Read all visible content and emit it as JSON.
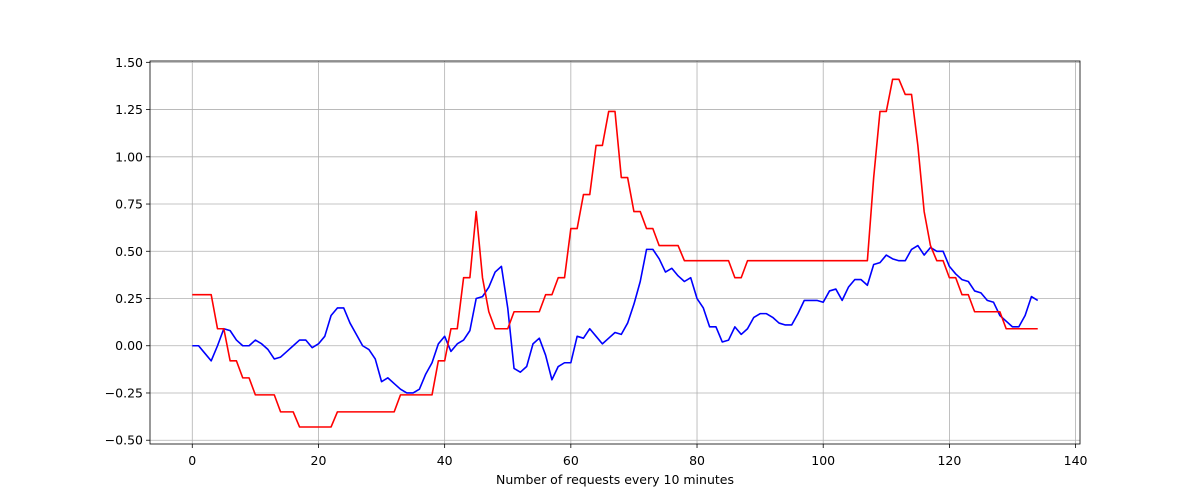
{
  "chart_data": {
    "type": "line",
    "xlabel": "Number of requests every 10 minutes",
    "x": [
      0,
      1,
      2,
      3,
      4,
      5,
      6,
      7,
      8,
      9,
      10,
      11,
      12,
      13,
      14,
      15,
      16,
      17,
      18,
      19,
      20,
      21,
      22,
      23,
      24,
      25,
      26,
      27,
      28,
      29,
      30,
      31,
      32,
      33,
      34,
      35,
      36,
      37,
      38,
      39,
      40,
      41,
      42,
      43,
      44,
      45,
      46,
      47,
      48,
      49,
      50,
      51,
      52,
      53,
      54,
      55,
      56,
      57,
      58,
      59,
      60,
      61,
      62,
      63,
      64,
      65,
      66,
      67,
      68,
      69,
      70,
      71,
      72,
      73,
      74,
      75,
      76,
      77,
      78,
      79,
      80,
      81,
      82,
      83,
      84,
      85,
      86,
      87,
      88,
      89,
      90,
      91,
      92,
      93,
      94,
      95,
      96,
      97,
      98,
      99,
      100,
      101,
      102,
      103,
      104,
      105,
      106,
      107,
      108,
      109,
      110,
      111,
      112,
      113,
      114,
      115,
      116,
      117,
      118,
      119,
      120,
      121,
      122,
      123,
      124,
      125,
      126,
      127,
      128,
      129,
      130,
      131,
      132,
      133,
      134
    ],
    "series": [
      {
        "color": "#0000ff",
        "values": [
          0.0,
          0.0,
          -0.04,
          -0.08,
          0.0,
          0.09,
          0.08,
          0.03,
          0.0,
          0.0,
          0.03,
          0.01,
          -0.02,
          -0.07,
          -0.06,
          -0.03,
          0.0,
          0.03,
          0.03,
          -0.01,
          0.01,
          0.05,
          0.16,
          0.2,
          0.2,
          0.12,
          0.06,
          0.0,
          -0.02,
          -0.07,
          -0.19,
          -0.17,
          -0.2,
          -0.23,
          -0.25,
          -0.25,
          -0.23,
          -0.15,
          -0.09,
          0.01,
          0.05,
          -0.03,
          0.01,
          0.03,
          0.08,
          0.25,
          0.26,
          0.31,
          0.39,
          0.42,
          0.2,
          -0.12,
          -0.14,
          -0.11,
          0.01,
          0.04,
          -0.05,
          -0.18,
          -0.11,
          -0.09,
          -0.09,
          0.05,
          0.04,
          0.09,
          0.05,
          0.01,
          0.04,
          0.07,
          0.06,
          0.12,
          0.22,
          0.34,
          0.51,
          0.51,
          0.46,
          0.39,
          0.41,
          0.37,
          0.34,
          0.36,
          0.25,
          0.2,
          0.1,
          0.1,
          0.02,
          0.03,
          0.1,
          0.06,
          0.09,
          0.15,
          0.17,
          0.17,
          0.15,
          0.12,
          0.11,
          0.11,
          0.17,
          0.24,
          0.24,
          0.24,
          0.23,
          0.29,
          0.3,
          0.24,
          0.31,
          0.35,
          0.35,
          0.32,
          0.43,
          0.44,
          0.48,
          0.46,
          0.45,
          0.45,
          0.51,
          0.53,
          0.48,
          0.52,
          0.5,
          0.5,
          0.42,
          0.38,
          0.35,
          0.34,
          0.29,
          0.28,
          0.24,
          0.23,
          0.16,
          0.13,
          0.1,
          0.1,
          0.16,
          0.26,
          0.24
        ]
      },
      {
        "color": "#ff0000",
        "values": [
          0.27,
          0.27,
          0.27,
          0.27,
          0.09,
          0.09,
          -0.08,
          -0.08,
          -0.17,
          -0.17,
          -0.26,
          -0.26,
          -0.26,
          -0.26,
          -0.35,
          -0.35,
          -0.35,
          -0.43,
          -0.43,
          -0.43,
          -0.43,
          -0.43,
          -0.43,
          -0.35,
          -0.35,
          -0.35,
          -0.35,
          -0.35,
          -0.35,
          -0.35,
          -0.35,
          -0.35,
          -0.35,
          -0.26,
          -0.26,
          -0.26,
          -0.26,
          -0.26,
          -0.26,
          -0.08,
          -0.08,
          0.09,
          0.09,
          0.36,
          0.36,
          0.71,
          0.36,
          0.18,
          0.09,
          0.09,
          0.09,
          0.18,
          0.18,
          0.18,
          0.18,
          0.18,
          0.27,
          0.27,
          0.36,
          0.36,
          0.62,
          0.62,
          0.8,
          0.8,
          1.06,
          1.06,
          1.24,
          1.24,
          0.89,
          0.89,
          0.71,
          0.71,
          0.62,
          0.62,
          0.53,
          0.53,
          0.53,
          0.53,
          0.45,
          0.45,
          0.45,
          0.45,
          0.45,
          0.45,
          0.45,
          0.45,
          0.36,
          0.36,
          0.45,
          0.45,
          0.45,
          0.45,
          0.45,
          0.45,
          0.45,
          0.45,
          0.45,
          0.45,
          0.45,
          0.45,
          0.45,
          0.45,
          0.45,
          0.45,
          0.45,
          0.45,
          0.45,
          0.45,
          0.89,
          1.24,
          1.24,
          1.41,
          1.41,
          1.33,
          1.33,
          1.06,
          0.71,
          0.53,
          0.45,
          0.45,
          0.36,
          0.36,
          0.27,
          0.27,
          0.18,
          0.18,
          0.18,
          0.18,
          0.18,
          0.09,
          0.09,
          0.09,
          0.09,
          0.09,
          0.09
        ]
      }
    ],
    "xlim": [
      -6.7,
      140.7
    ],
    "ylim": [
      -0.52,
      1.507
    ],
    "xticks": [
      0,
      20,
      40,
      60,
      80,
      100,
      120,
      140
    ],
    "yticks": [
      {
        "value": -0.5,
        "label": "−0.50"
      },
      {
        "value": -0.25,
        "label": "−0.25"
      },
      {
        "value": 0,
        "label": "0.00"
      },
      {
        "value": 0.25,
        "label": "0.25"
      },
      {
        "value": 0.5,
        "label": "0.50"
      },
      {
        "value": 0.75,
        "label": "0.75"
      },
      {
        "value": 1.0,
        "label": "1.00"
      },
      {
        "value": 1.25,
        "label": "1.25"
      },
      {
        "value": 1.5,
        "label": "1.50"
      }
    ],
    "grid": true
  }
}
